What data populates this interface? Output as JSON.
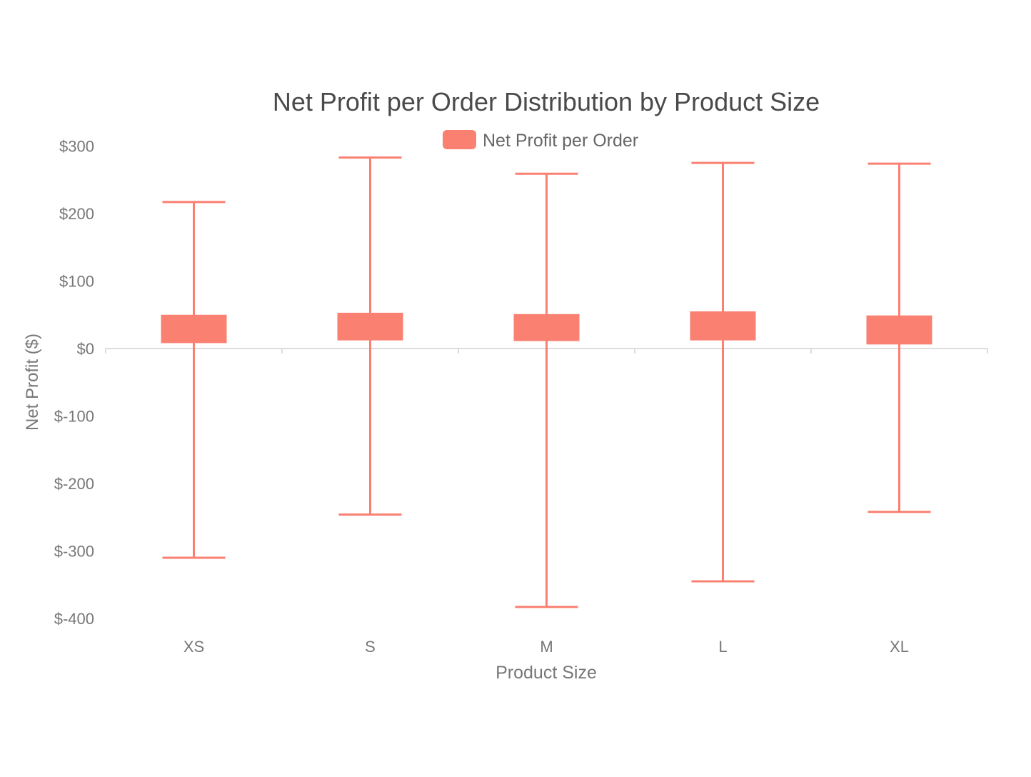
{
  "chart_data": {
    "type": "boxplot",
    "title": "Net Profit per Order Distribution by Product Size",
    "xlabel": "Product Size",
    "ylabel": "Net Profit ($)",
    "legend": {
      "label": "Net Profit per Order",
      "position": "top-center"
    },
    "categories": [
      "XS",
      "S",
      "M",
      "L",
      "XL"
    ],
    "series": [
      {
        "name": "Net Profit per Order",
        "color": "#fa8072",
        "boxes": [
          {
            "category": "XS",
            "min": -310,
            "q1": 8,
            "q3": 50,
            "max": 217
          },
          {
            "category": "S",
            "min": -246,
            "q1": 12,
            "q3": 53,
            "max": 283
          },
          {
            "category": "M",
            "min": -383,
            "q1": 11,
            "q3": 51,
            "max": 259
          },
          {
            "category": "L",
            "min": -345,
            "q1": 12,
            "q3": 55,
            "max": 275
          },
          {
            "category": "XL",
            "min": -242,
            "q1": 6,
            "q3": 49,
            "max": 274
          }
        ]
      }
    ],
    "y_ticks": [
      300,
      200,
      100,
      0,
      -100,
      -200,
      -300,
      -400
    ],
    "y_tick_labels": [
      "$300",
      "$200",
      "$100",
      "$0",
      "$-100",
      "$-200",
      "$-300",
      "$-400"
    ],
    "ylim": [
      -400,
      300
    ],
    "grid": false
  }
}
